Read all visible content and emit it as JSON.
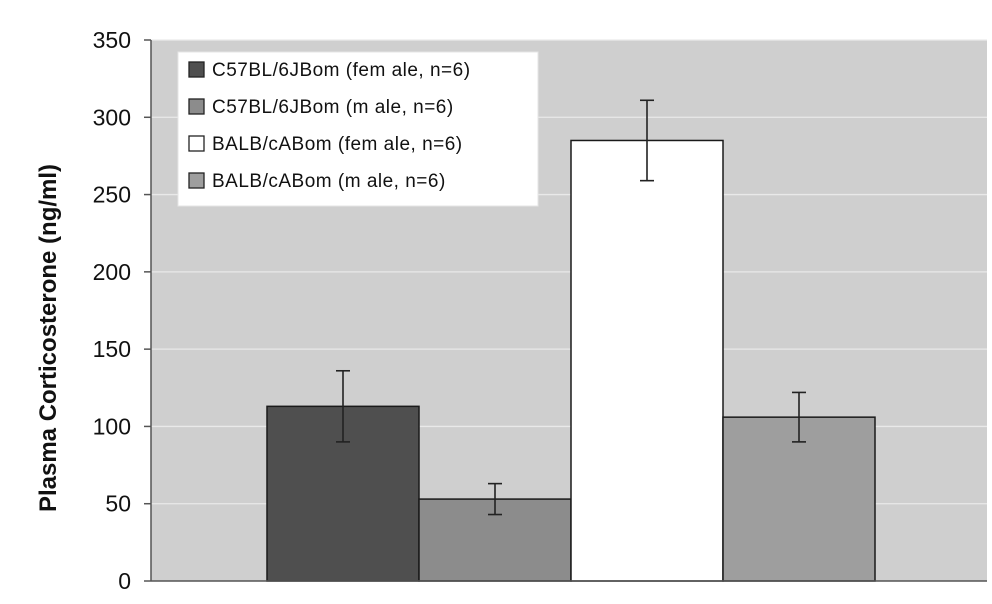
{
  "chart_data": {
    "type": "bar",
    "title": "",
    "xlabel": "",
    "ylabel": "Plasma Corticosterone (ng/ml)",
    "ylim": [
      0,
      350
    ],
    "y_ticks": [
      0,
      50,
      100,
      150,
      200,
      250,
      300,
      350
    ],
    "grid": true,
    "legend_position": "top-left",
    "series": [
      {
        "name": "C57BL/6JBom (fem ale, n=6)",
        "value": 113,
        "error": 23,
        "color": "#4f4f4f"
      },
      {
        "name": "C57BL/6JBom (m ale, n=6)",
        "value": 53,
        "error": 10,
        "color": "#8c8c8c"
      },
      {
        "name": "BALB/cABom (fem ale, n=6)",
        "value": 285,
        "error": 26,
        "color": "#ffffff"
      },
      {
        "name": "BALB/cABom (m ale, n=6)",
        "value": 106,
        "error": 16,
        "color": "#9e9e9e"
      }
    ],
    "plot_background": "#cfcfcf",
    "gridline_color": "#e9e9e9"
  }
}
